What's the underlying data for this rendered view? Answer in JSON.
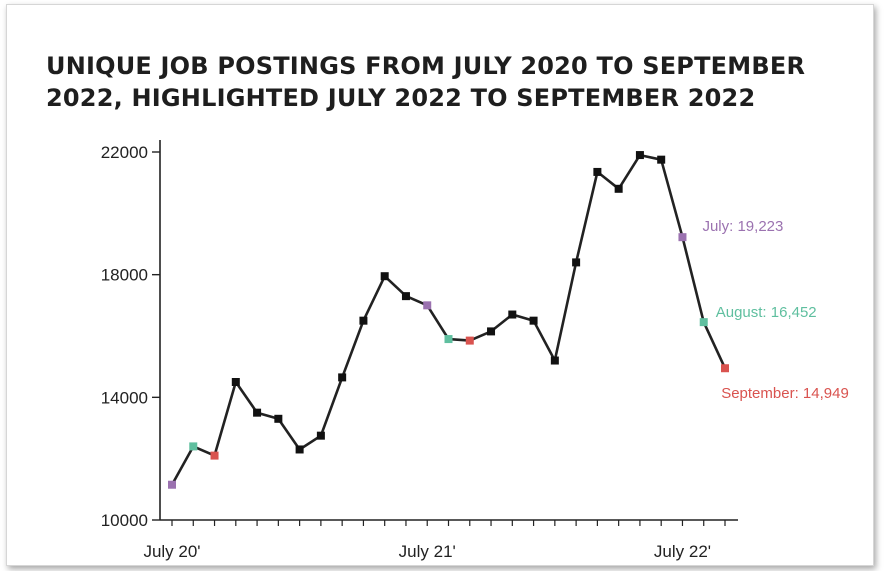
{
  "chart_data": {
    "type": "line",
    "title": "UNIQUE JOB POSTINGS FROM JULY 2020 TO SEPTEMBER 2022, HIGHLIGHTED JULY 2022 TO SEPTEMBER 2022",
    "xlabel": "",
    "ylabel": "",
    "ylim": [
      10000,
      22000
    ],
    "yticks": [
      "10000",
      "14000",
      "18000",
      "22000"
    ],
    "x_tick_labels": [
      "July 20'",
      "July 21'",
      "July 22'"
    ],
    "x": [
      "Jul 2020",
      "Aug 2020",
      "Sep 2020",
      "Oct 2020",
      "Nov 2020",
      "Dec 2020",
      "Jan 2021",
      "Feb 2021",
      "Mar 2021",
      "Apr 2021",
      "May 2021",
      "Jun 2021",
      "Jul 2021",
      "Aug 2021",
      "Sep 2021",
      "Oct 2021",
      "Nov 2021",
      "Dec 2021",
      "Jan 2022",
      "Feb 2022",
      "Mar 2022",
      "Apr 2022",
      "May 2022",
      "Jun 2022",
      "Jul 2022",
      "Aug 2022",
      "Sep 2022"
    ],
    "values": [
      11150,
      12400,
      12100,
      14500,
      13500,
      13300,
      12300,
      12750,
      14650,
      16500,
      17950,
      17300,
      17000,
      15900,
      15850,
      16150,
      16700,
      16500,
      15200,
      18400,
      21350,
      20800,
      21900,
      21750,
      19223,
      16452,
      14949
    ],
    "grid": false,
    "colors": {
      "line": "#222222",
      "marker": "#111111",
      "july": "#9b72b0",
      "august": "#5fbf9f",
      "september": "#d9534f"
    },
    "highlight_months": {
      "july": [
        0,
        12,
        24
      ],
      "august": [
        1,
        13,
        25
      ],
      "september": [
        2,
        14,
        26
      ]
    },
    "annotations": [
      {
        "text": "July: 19,223",
        "point": 24,
        "color": "#9b72b0"
      },
      {
        "text": "August: 16,452",
        "point": 25,
        "color": "#5fbf9f"
      },
      {
        "text": "September: 14,949",
        "point": 26,
        "color": "#d9534f"
      }
    ]
  }
}
